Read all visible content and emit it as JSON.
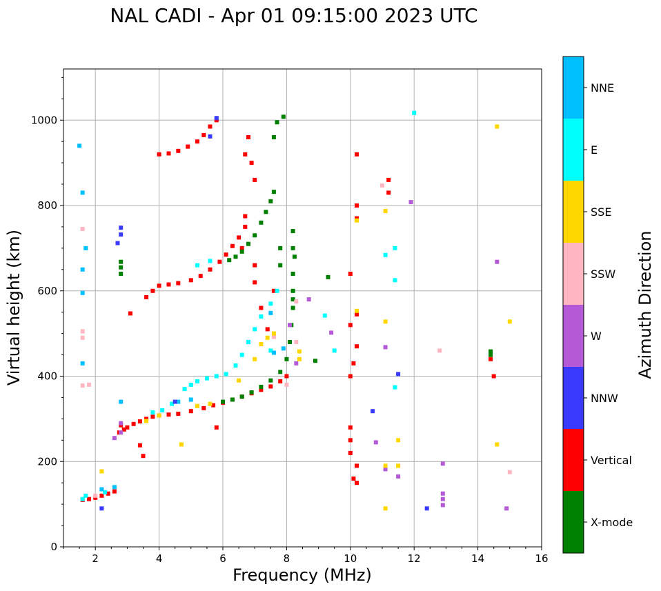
{
  "chart_data": {
    "type": "scatter",
    "title": "NAL CADI - Apr 01 09:15:00 2023 UTC",
    "xlabel": "Frequency (MHz)",
    "ylabel": "Virtual height (km)",
    "xlim": [
      1,
      16
    ],
    "ylim": [
      0,
      1120
    ],
    "xticks": [
      2,
      4,
      6,
      8,
      10,
      12,
      14,
      16
    ],
    "yticks": [
      0,
      200,
      400,
      600,
      800,
      1000
    ],
    "grid": true,
    "colorbar": {
      "label": "Azimuth Direction",
      "categories": [
        {
          "name": "X-mode",
          "color": "#008000"
        },
        {
          "name": "Vertical",
          "color": "#ff0000"
        },
        {
          "name": "NNW",
          "color": "#3a3aff"
        },
        {
          "name": "W",
          "color": "#b45ad6"
        },
        {
          "name": "SSW",
          "color": "#ffb6c1"
        },
        {
          "name": "SSE",
          "color": "#ffd700"
        },
        {
          "name": "E",
          "color": "#00ffff"
        },
        {
          "name": "NNE",
          "color": "#00bfff"
        }
      ]
    },
    "series": [
      {
        "name": "Vertical",
        "color": "#ff0000",
        "points": [
          [
            1.6,
            110
          ],
          [
            1.8,
            112
          ],
          [
            2.0,
            115
          ],
          [
            2.2,
            120
          ],
          [
            2.4,
            125
          ],
          [
            2.6,
            130
          ],
          [
            2.75,
            268
          ],
          [
            2.8,
            285
          ],
          [
            2.9,
            275
          ],
          [
            3.0,
            280
          ],
          [
            3.2,
            288
          ],
          [
            3.4,
            294
          ],
          [
            3.6,
            300
          ],
          [
            3.8,
            305
          ],
          [
            4.0,
            308
          ],
          [
            4.3,
            310
          ],
          [
            4.6,
            312
          ],
          [
            5.0,
            318
          ],
          [
            5.4,
            325
          ],
          [
            5.7,
            332
          ],
          [
            6.0,
            338
          ],
          [
            6.3,
            345
          ],
          [
            6.6,
            352
          ],
          [
            6.9,
            360
          ],
          [
            7.2,
            368
          ],
          [
            7.5,
            376
          ],
          [
            7.8,
            388
          ],
          [
            8.0,
            400
          ],
          [
            3.6,
            585
          ],
          [
            3.8,
            600
          ],
          [
            4.0,
            612
          ],
          [
            4.3,
            615
          ],
          [
            4.6,
            618
          ],
          [
            5.0,
            625
          ],
          [
            5.3,
            635
          ],
          [
            5.6,
            650
          ],
          [
            5.9,
            668
          ],
          [
            6.1,
            685
          ],
          [
            6.3,
            705
          ],
          [
            6.5,
            725
          ],
          [
            6.7,
            750
          ],
          [
            4.0,
            920
          ],
          [
            4.3,
            922
          ],
          [
            4.6,
            928
          ],
          [
            4.9,
            938
          ],
          [
            5.2,
            950
          ],
          [
            5.4,
            965
          ],
          [
            5.6,
            985
          ],
          [
            5.8,
            1000
          ],
          [
            6.7,
            775
          ],
          [
            6.7,
            920
          ],
          [
            6.8,
            960
          ],
          [
            6.9,
            900
          ],
          [
            7.0,
            860
          ],
          [
            7.0,
            660
          ],
          [
            7.0,
            620
          ],
          [
            7.2,
            560
          ],
          [
            7.4,
            510
          ],
          [
            7.6,
            600
          ],
          [
            6.6,
            700
          ],
          [
            10.0,
            640
          ],
          [
            10.0,
            520
          ],
          [
            10.2,
            545
          ],
          [
            10.2,
            470
          ],
          [
            10.1,
            430
          ],
          [
            10.0,
            400
          ],
          [
            10.0,
            280
          ],
          [
            10.0,
            250
          ],
          [
            10.0,
            220
          ],
          [
            10.2,
            190
          ],
          [
            10.1,
            160
          ],
          [
            10.2,
            150
          ],
          [
            10.2,
            920
          ],
          [
            10.2,
            800
          ],
          [
            10.2,
            770
          ],
          [
            11.2,
            860
          ],
          [
            11.2,
            830
          ],
          [
            14.4,
            440
          ],
          [
            14.5,
            400
          ],
          [
            3.4,
            238
          ],
          [
            3.5,
            213
          ],
          [
            5.8,
            280
          ],
          [
            3.1,
            547
          ]
        ]
      },
      {
        "name": "X-mode",
        "color": "#008000",
        "points": [
          [
            2.8,
            640
          ],
          [
            2.8,
            655
          ],
          [
            2.8,
            668
          ],
          [
            6.0,
            340
          ],
          [
            6.3,
            345
          ],
          [
            6.6,
            352
          ],
          [
            6.9,
            362
          ],
          [
            7.2,
            375
          ],
          [
            7.5,
            390
          ],
          [
            7.8,
            410
          ],
          [
            8.0,
            440
          ],
          [
            8.1,
            480
          ],
          [
            8.15,
            520
          ],
          [
            8.2,
            560
          ],
          [
            8.2,
            600
          ],
          [
            8.2,
            640
          ],
          [
            8.25,
            680
          ],
          [
            6.2,
            672
          ],
          [
            6.4,
            680
          ],
          [
            6.6,
            692
          ],
          [
            6.8,
            710
          ],
          [
            7.0,
            730
          ],
          [
            7.2,
            760
          ],
          [
            7.35,
            785
          ],
          [
            7.5,
            810
          ],
          [
            7.6,
            832
          ],
          [
            7.7,
            995
          ],
          [
            7.9,
            1008
          ],
          [
            8.2,
            740
          ],
          [
            8.2,
            700
          ],
          [
            8.2,
            580
          ],
          [
            9.3,
            632
          ],
          [
            8.9,
            436
          ],
          [
            14.4,
            458
          ],
          [
            14.4,
            450
          ],
          [
            7.8,
            700
          ],
          [
            7.8,
            660
          ],
          [
            7.6,
            960
          ]
        ]
      },
      {
        "name": "E",
        "color": "#00ffff",
        "points": [
          [
            1.6,
            112
          ],
          [
            1.7,
            120
          ],
          [
            2.3,
            128
          ],
          [
            3.8,
            315
          ],
          [
            4.1,
            320
          ],
          [
            4.4,
            335
          ],
          [
            4.8,
            370
          ],
          [
            5.0,
            380
          ],
          [
            5.2,
            388
          ],
          [
            5.5,
            395
          ],
          [
            5.8,
            400
          ],
          [
            6.1,
            405
          ],
          [
            6.4,
            425
          ],
          [
            6.6,
            450
          ],
          [
            6.8,
            480
          ],
          [
            7.0,
            510
          ],
          [
            7.2,
            540
          ],
          [
            7.5,
            570
          ],
          [
            7.7,
            600
          ],
          [
            7.5,
            460
          ],
          [
            5.2,
            660
          ],
          [
            5.6,
            670
          ],
          [
            9.5,
            460
          ],
          [
            9.2,
            542
          ],
          [
            11.1,
            684
          ],
          [
            11.4,
            700
          ],
          [
            11.4,
            625
          ],
          [
            11.4,
            374
          ],
          [
            12.0,
            1017
          ]
        ]
      },
      {
        "name": "NNE",
        "color": "#00bfff",
        "points": [
          [
            1.5,
            940
          ],
          [
            1.6,
            830
          ],
          [
            1.6,
            650
          ],
          [
            1.6,
            595
          ],
          [
            1.6,
            430
          ],
          [
            1.7,
            700
          ],
          [
            2.2,
            135
          ],
          [
            2.6,
            140
          ],
          [
            2.8,
            340
          ],
          [
            4.6,
            340
          ],
          [
            5.0,
            345
          ],
          [
            7.5,
            548
          ],
          [
            7.6,
            455
          ],
          [
            7.9,
            465
          ]
        ]
      },
      {
        "name": "NNW",
        "color": "#3a3aff",
        "points": [
          [
            2.8,
            748
          ],
          [
            2.8,
            732
          ],
          [
            2.7,
            712
          ],
          [
            2.2,
            90
          ],
          [
            5.6,
            962
          ],
          [
            5.8,
            1005
          ],
          [
            4.5,
            340
          ],
          [
            10.7,
            318
          ],
          [
            11.5,
            405
          ],
          [
            12.4,
            90
          ]
        ]
      },
      {
        "name": "W",
        "color": "#b45ad6",
        "points": [
          [
            2.8,
            268
          ],
          [
            2.8,
            290
          ],
          [
            2.6,
            255
          ],
          [
            11.9,
            808
          ],
          [
            14.6,
            668
          ],
          [
            12.9,
            195
          ],
          [
            12.9,
            125
          ],
          [
            12.9,
            112
          ],
          [
            12.9,
            98
          ],
          [
            11.1,
            182
          ],
          [
            11.1,
            468
          ],
          [
            11.5,
            165
          ],
          [
            14.9,
            90
          ],
          [
            10.8,
            245
          ],
          [
            9.4,
            502
          ],
          [
            8.7,
            580
          ],
          [
            8.3,
            430
          ],
          [
            8.1,
            520
          ]
        ]
      },
      {
        "name": "SSW",
        "color": "#ffb6c1",
        "points": [
          [
            1.6,
            745
          ],
          [
            1.6,
            378
          ],
          [
            1.8,
            380
          ],
          [
            1.6,
            505
          ],
          [
            1.6,
            490
          ],
          [
            2.0,
            120
          ],
          [
            11.0,
            847
          ],
          [
            15.0,
            175
          ],
          [
            8.3,
            575
          ],
          [
            8.3,
            480
          ],
          [
            8.0,
            380
          ],
          [
            7.6,
            492
          ],
          [
            12.8,
            460
          ]
        ]
      },
      {
        "name": "SSE",
        "color": "#ffd700",
        "points": [
          [
            2.2,
            177
          ],
          [
            3.6,
            295
          ],
          [
            4.0,
            308
          ],
          [
            4.7,
            240
          ],
          [
            5.2,
            330
          ],
          [
            5.6,
            335
          ],
          [
            6.5,
            390
          ],
          [
            7.0,
            440
          ],
          [
            7.2,
            475
          ],
          [
            7.4,
            490
          ],
          [
            7.6,
            500
          ],
          [
            8.4,
            440
          ],
          [
            8.4,
            458
          ],
          [
            10.2,
            553
          ],
          [
            10.2,
            765
          ],
          [
            11.1,
            787
          ],
          [
            11.1,
            528
          ],
          [
            11.1,
            190
          ],
          [
            11.1,
            90
          ],
          [
            11.5,
            190
          ],
          [
            11.5,
            250
          ],
          [
            14.6,
            985
          ],
          [
            14.6,
            240
          ],
          [
            15.0,
            528
          ]
        ]
      }
    ]
  }
}
